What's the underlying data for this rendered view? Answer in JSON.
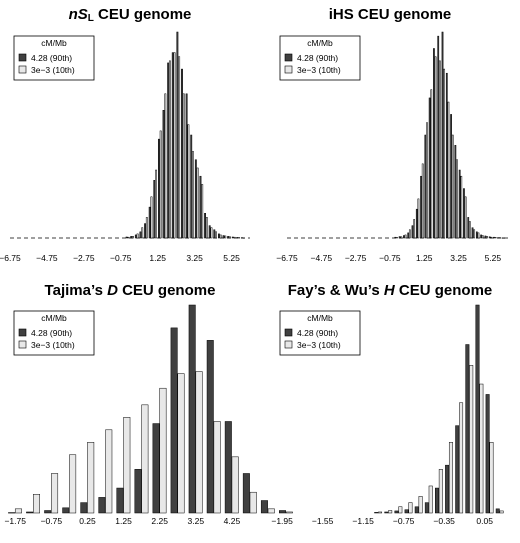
{
  "chart_data": [
    {
      "type": "bar",
      "title_parts": [
        {
          "text": "nS",
          "style": "italic"
        },
        {
          "text": "L",
          "style": "sub"
        },
        {
          "text": " CEU genome",
          "style": "normal"
        }
      ],
      "legend": {
        "title": "cM/Mb",
        "placement": "top-left",
        "entries": [
          {
            "label": "4.28 (90th)",
            "color": "#404040"
          },
          {
            "label": "3e−3 (10th)",
            "color": "#e8e8e8"
          }
        ]
      },
      "x_ticks": [
        "−6.75",
        "−4.75",
        "−2.75",
        "−0.75",
        "1.25",
        "3.25",
        "5.25"
      ],
      "x_range": [
        -6.75,
        6.25
      ],
      "tick_start": -6.75,
      "tick_step": 2.0,
      "bin_start": -7.0,
      "bin_width": 0.25,
      "ylim": [
        0,
        1
      ],
      "baseline_dashed": true,
      "series": [
        {
          "name": "4.28 (90th)",
          "color": "#404040",
          "values": [
            0,
            0,
            0,
            0,
            0,
            0,
            0,
            0,
            0,
            0,
            0,
            0,
            0,
            0,
            0,
            0,
            0,
            0,
            0,
            0,
            0,
            0,
            0,
            0,
            0,
            0,
            0.005,
            0.008,
            0.015,
            0.03,
            0.07,
            0.15,
            0.28,
            0.48,
            0.62,
            0.85,
            0.9,
            1.0,
            0.82,
            0.7,
            0.5,
            0.38,
            0.3,
            0.12,
            0.06,
            0.04,
            0.02,
            0.012,
            0.008,
            0.005,
            0.003,
            0.002,
            0,
            0
          ]
        },
        {
          "name": "3e−3 (10th)",
          "color": "#e8e8e8",
          "values": [
            0,
            0,
            0,
            0,
            0,
            0,
            0,
            0,
            0,
            0,
            0,
            0,
            0,
            0,
            0,
            0,
            0,
            0,
            0,
            0,
            0,
            0,
            0,
            0,
            0,
            0,
            0.004,
            0.008,
            0.02,
            0.05,
            0.1,
            0.2,
            0.33,
            0.52,
            0.7,
            0.86,
            0.9,
            0.88,
            0.7,
            0.55,
            0.42,
            0.34,
            0.26,
            0.1,
            0.05,
            0.03,
            0.015,
            0.01,
            0.006,
            0.004,
            0.002,
            0.001,
            0,
            0
          ]
        }
      ]
    },
    {
      "type": "bar",
      "title_parts": [
        {
          "text": "iHS CEU genome",
          "style": "normal"
        }
      ],
      "legend": {
        "title": "cM/Mb",
        "placement": "top-left",
        "entries": [
          {
            "label": "4.28 (90th)",
            "color": "#404040"
          },
          {
            "label": "3e−3 (10th)",
            "color": "#e8e8e8"
          }
        ]
      },
      "x_ticks": [
        "−6.75",
        "−4.75",
        "−2.75",
        "−0.75",
        "1.25",
        "3.25",
        "5.25"
      ],
      "x_range": [
        -6.75,
        6.25
      ],
      "tick_start": -6.75,
      "tick_step": 2.0,
      "bin_start": -7.0,
      "bin_width": 0.25,
      "ylim": [
        0,
        1
      ],
      "baseline_dashed": true,
      "series": [
        {
          "name": "4.28 (90th)",
          "color": "#404040",
          "values": [
            0,
            0,
            0,
            0,
            0,
            0,
            0,
            0,
            0,
            0,
            0,
            0,
            0,
            0,
            0,
            0,
            0,
            0,
            0,
            0,
            0,
            0,
            0,
            0,
            0,
            0,
            0.004,
            0.007,
            0.012,
            0.025,
            0.06,
            0.14,
            0.3,
            0.5,
            0.68,
            0.92,
            0.98,
            1.0,
            0.8,
            0.6,
            0.45,
            0.33,
            0.24,
            0.1,
            0.05,
            0.03,
            0.015,
            0.01,
            0.006,
            0.004,
            0.002,
            0.001,
            0,
            0
          ]
        },
        {
          "name": "3e−3 (10th)",
          "color": "#e8e8e8",
          "values": [
            0,
            0,
            0,
            0,
            0,
            0,
            0,
            0,
            0,
            0,
            0,
            0,
            0,
            0,
            0,
            0,
            0,
            0,
            0,
            0,
            0,
            0,
            0,
            0,
            0,
            0,
            0.003,
            0.006,
            0.015,
            0.04,
            0.09,
            0.19,
            0.36,
            0.56,
            0.72,
            0.88,
            0.86,
            0.82,
            0.66,
            0.5,
            0.38,
            0.3,
            0.2,
            0.08,
            0.04,
            0.025,
            0.012,
            0.008,
            0.004,
            0.003,
            0.002,
            0.001,
            0,
            0
          ]
        }
      ]
    },
    {
      "type": "bar",
      "title_parts": [
        {
          "text": "Tajima’s ",
          "style": "normal"
        },
        {
          "text": "D",
          "style": "italic"
        },
        {
          "text": " CEU genome",
          "style": "normal"
        }
      ],
      "legend": {
        "title": "cM/Mb",
        "placement": "top-left",
        "entries": [
          {
            "label": "4.28 (90th)",
            "color": "#404040"
          },
          {
            "label": "3e−3 (10th)",
            "color": "#e8e8e8"
          }
        ]
      },
      "x_ticks": [
        "−1.75",
        "−0.75",
        "0.25",
        "1.25",
        "2.25",
        "3.25",
        "4.25"
      ],
      "x_range": [
        -1.95,
        4.75
      ],
      "tick_start": -1.75,
      "tick_step": 1.0,
      "bin_start": -2.0,
      "bin_width": 0.5,
      "ylim": [
        0,
        1
      ],
      "baseline_dashed": false,
      "series": [
        {
          "name": "4.28 (90th)",
          "color": "#404040",
          "values": [
            0.002,
            0.005,
            0.012,
            0.025,
            0.05,
            0.075,
            0.12,
            0.21,
            0.43,
            0.89,
            1.0,
            0.83,
            0.44,
            0.19,
            0.06,
            0.012
          ]
        },
        {
          "name": "3e−3 (10th)",
          "color": "#e8e8e8",
          "values": [
            0.02,
            0.09,
            0.19,
            0.28,
            0.34,
            0.4,
            0.46,
            0.52,
            0.6,
            0.67,
            0.68,
            0.44,
            0.27,
            0.1,
            0.02,
            0.005
          ]
        }
      ]
    },
    {
      "type": "bar",
      "title_parts": [
        {
          "text": "Fay’s & Wu’s ",
          "style": "normal"
        },
        {
          "text": "H",
          "style": "italic"
        },
        {
          "text": " CEU genome",
          "style": "normal"
        }
      ],
      "legend": {
        "title": "cM/Mb",
        "placement": "top-left",
        "entries": [
          {
            "label": "4.28 (90th)",
            "color": "#404040"
          },
          {
            "label": "3e−3 (10th)",
            "color": "#e8e8e8"
          }
        ]
      },
      "x_ticks": [
        "−1.95",
        "−1.55",
        "−1.15",
        "−0.75",
        "−0.35",
        "0.05"
      ],
      "x_range": [
        -2.05,
        0.3
      ],
      "tick_start": -1.95,
      "tick_step": 0.4,
      "bin_start": -1.05,
      "bin_width": 0.1,
      "ylim": [
        0,
        1
      ],
      "baseline_dashed": false,
      "series": [
        {
          "name": "4.28 (90th)",
          "color": "#404040",
          "values": [
            0.003,
            0.005,
            0.01,
            0.016,
            0.03,
            0.05,
            0.12,
            0.23,
            0.42,
            0.81,
            1.0,
            0.57,
            0.02
          ]
        },
        {
          "name": "3e−3 (10th)",
          "color": "#e8e8e8",
          "values": [
            0.005,
            0.012,
            0.03,
            0.05,
            0.08,
            0.13,
            0.21,
            0.34,
            0.53,
            0.71,
            0.62,
            0.34,
            0.01
          ]
        }
      ]
    }
  ]
}
